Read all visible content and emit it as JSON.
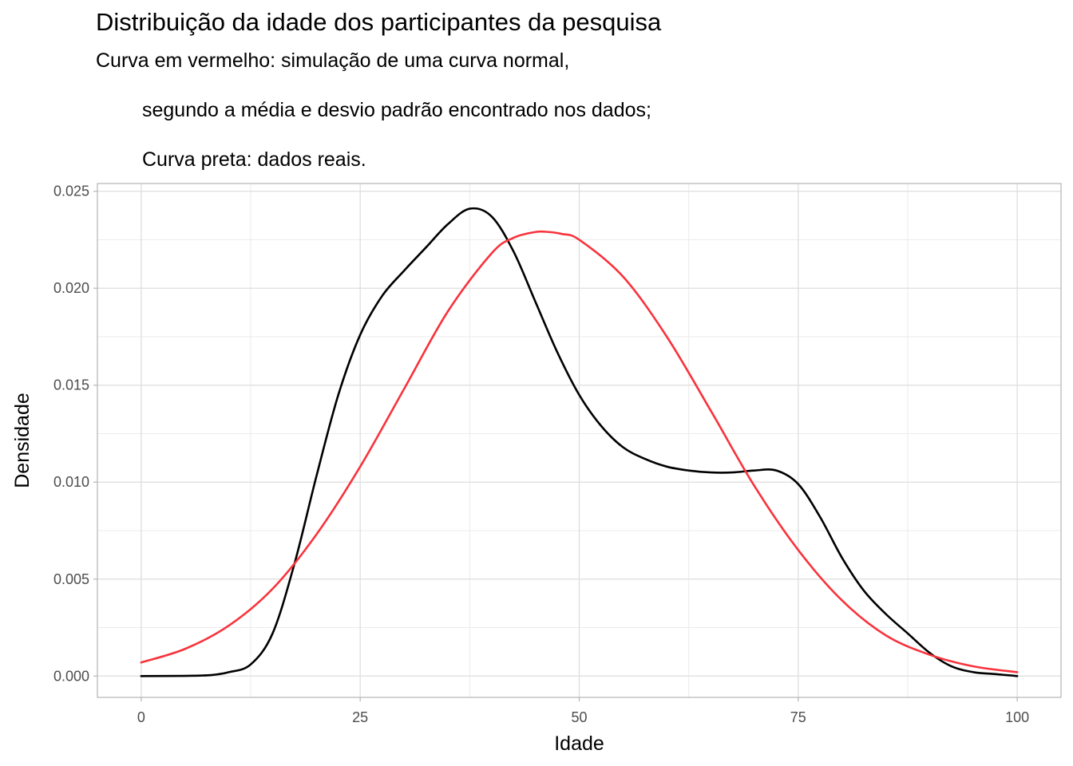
{
  "header": {
    "title": "Distribuição da idade dos participantes da pesquisa",
    "subtitle_lines": [
      "Curva em vermelho: simulação de uma curva normal,",
      "segundo a média e desvio padrão encontrado nos dados;",
      "Curva preta: dados reais."
    ]
  },
  "chart_data": {
    "type": "line",
    "title": "Distribuição da idade dos participantes da pesquisa",
    "xlabel": "Idade",
    "ylabel": "Densidade",
    "xlim": [
      -5,
      105
    ],
    "ylim": [
      -0.0011,
      0.0254
    ],
    "x_ticks": [
      0,
      25,
      50,
      75,
      100
    ],
    "x_tick_labels": [
      "0",
      "25",
      "50",
      "75",
      "100"
    ],
    "y_ticks": [
      0.0,
      0.005,
      0.01,
      0.015,
      0.02,
      0.025
    ],
    "y_tick_labels": [
      "0.000",
      "0.005",
      "0.010",
      "0.015",
      "0.020",
      "0.025"
    ],
    "grid": true,
    "legend": "none",
    "series": [
      {
        "color": "#000000",
        "x": [
          0,
          5,
          8,
          10,
          12.5,
          15,
          17.5,
          20,
          22.5,
          25,
          27.5,
          30,
          32.5,
          35,
          37.5,
          40,
          42.5,
          45,
          47.5,
          50,
          52.5,
          55,
          57.5,
          60,
          62.5,
          65,
          67.5,
          70,
          72.5,
          75,
          77.5,
          80,
          82.5,
          85,
          87.5,
          90,
          92.5,
          95,
          97.5,
          100
        ],
        "y": [
          0.0,
          1e-05,
          5e-05,
          0.0002,
          0.0006,
          0.0022,
          0.0058,
          0.0103,
          0.0145,
          0.0176,
          0.0196,
          0.0209,
          0.0221,
          0.0233,
          0.0241,
          0.0237,
          0.0219,
          0.0193,
          0.0167,
          0.0145,
          0.0129,
          0.0118,
          0.0112,
          0.0108,
          0.0106,
          0.0105,
          0.0105,
          0.0106,
          0.0106,
          0.0099,
          0.0082,
          0.0061,
          0.0044,
          0.0032,
          0.0022,
          0.0012,
          0.0005,
          0.0002,
          0.0001,
          0.0
        ]
      },
      {
        "color": "#F8333C",
        "x": [
          0,
          5,
          10,
          15,
          20,
          25,
          30,
          35,
          40,
          42.5,
          45,
          46.5,
          48,
          50,
          55,
          60,
          65,
          70,
          75,
          80,
          85,
          90,
          95,
          100
        ],
        "y": [
          0.0007,
          0.0014,
          0.0026,
          0.0045,
          0.0073,
          0.0108,
          0.0148,
          0.0188,
          0.0218,
          0.0226,
          0.0229,
          0.0229,
          0.0228,
          0.0225,
          0.0206,
          0.0175,
          0.0137,
          0.0098,
          0.0065,
          0.0039,
          0.0021,
          0.0011,
          0.0005,
          0.0002
        ]
      }
    ]
  }
}
